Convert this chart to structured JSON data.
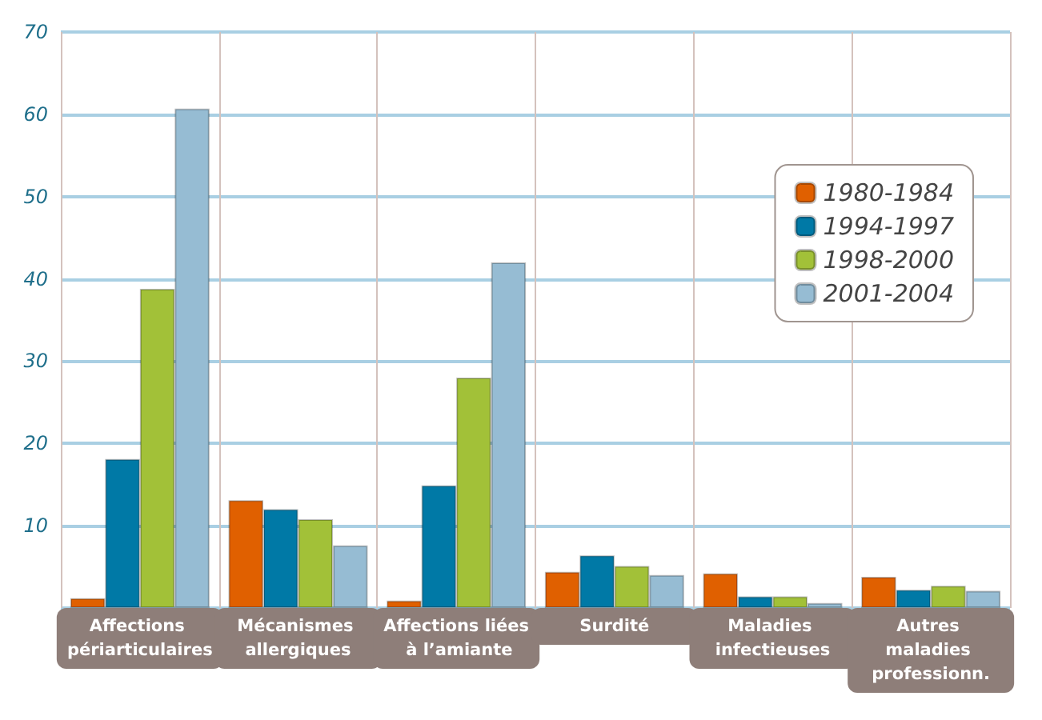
{
  "chart_data": {
    "type": "bar",
    "categories": [
      "Affections périarticulaires",
      "Mécanismes allergiques",
      "Affections liées à l’amiante",
      "Surdité",
      "Maladies infectieuses",
      "Autres maladies professionn."
    ],
    "series": [
      {
        "name": "1980-1984",
        "color": "#e06000",
        "values": [
          1.2,
          13.1,
          0.9,
          4.4,
          4.2,
          3.8
        ]
      },
      {
        "name": "1994-1997",
        "color": "#0079a6",
        "values": [
          18.1,
          12.0,
          14.9,
          6.4,
          1.4,
          2.2
        ]
      },
      {
        "name": "1998-2000",
        "color": "#a2c138",
        "values": [
          38.8,
          10.8,
          28.0,
          5.1,
          1.4,
          2.7
        ]
      },
      {
        "name": "2001-2004",
        "color": "#96bcd3",
        "values": [
          60.7,
          7.6,
          42.0,
          4.0,
          0.6,
          2.1
        ]
      }
    ],
    "ylim": [
      0,
      70
    ],
    "yticks": [
      {
        "value": 0,
        "label": null
      },
      10,
      20,
      30,
      40,
      50,
      60,
      70
    ],
    "grid": true,
    "legend": "top right"
  }
}
